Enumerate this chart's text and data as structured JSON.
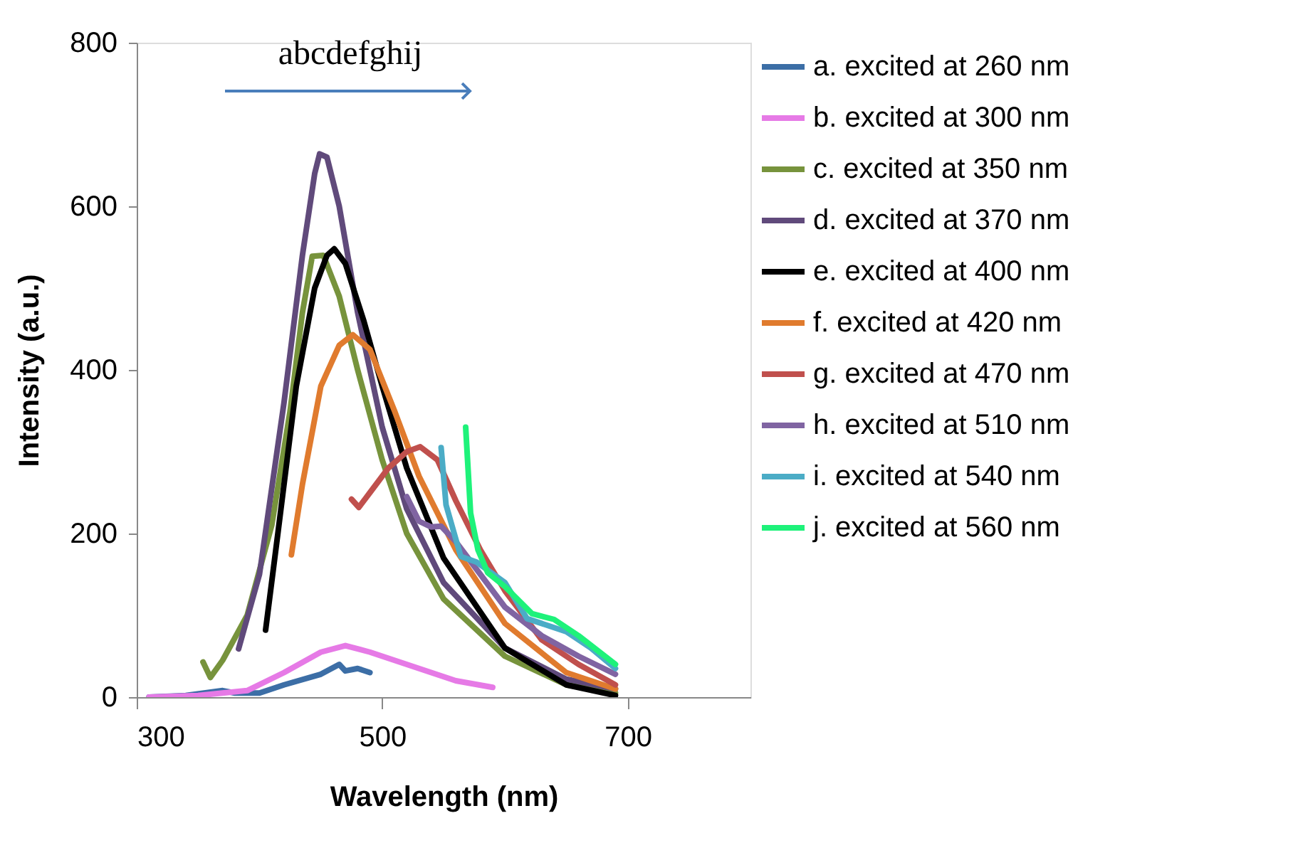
{
  "chart_data": {
    "type": "line",
    "xlabel": "Wavelength (nm)",
    "ylabel": "Intensity (a.u.)",
    "annotations": [
      "abcdefghij"
    ],
    "xlim": [
      300,
      800
    ],
    "xticks": [
      300,
      500,
      700
    ],
    "ylim": [
      0,
      800
    ],
    "yticks": [
      0,
      200,
      400,
      600,
      800
    ],
    "grid": false,
    "legend": "right",
    "marker": "none",
    "line_style": "solid",
    "series": [
      {
        "name": "a. excited at 260 nm",
        "color": "#3c6ea6",
        "x": [
          310,
          340,
          370,
          380,
          400,
          420,
          450,
          465,
          470,
          480,
          490
        ],
        "values": [
          0,
          2,
          8,
          5,
          5,
          15,
          28,
          40,
          32,
          35,
          30
        ]
      },
      {
        "name": "b. excited at 300 nm",
        "color": "#e67ae6",
        "x": [
          310,
          350,
          390,
          420,
          450,
          470,
          490,
          520,
          560,
          590
        ],
        "values": [
          0,
          2,
          8,
          30,
          55,
          63,
          55,
          40,
          20,
          12
        ]
      },
      {
        "name": "c. excited at 350 nm",
        "color": "#77933c",
        "x": [
          354,
          360,
          370,
          390,
          410,
          425,
          435,
          443,
          452,
          465,
          480,
          500,
          520,
          550,
          600,
          650,
          690
        ],
        "values": [
          43,
          24,
          45,
          100,
          210,
          350,
          470,
          539,
          540,
          490,
          400,
          290,
          200,
          120,
          50,
          15,
          5
        ]
      },
      {
        "name": "d. excited at 370 nm",
        "color": "#604a7b",
        "x": [
          383,
          400,
          420,
          435,
          445,
          449,
          455,
          465,
          480,
          500,
          520,
          550,
          600,
          650,
          690
        ],
        "values": [
          59,
          150,
          360,
          540,
          640,
          664,
          660,
          600,
          470,
          330,
          230,
          140,
          60,
          22,
          10
        ]
      },
      {
        "name": "e. excited at 400 nm",
        "color": "#000000",
        "x": [
          405,
          415,
          430,
          445,
          455,
          461,
          470,
          485,
          500,
          520,
          550,
          600,
          650,
          690
        ],
        "values": [
          82,
          200,
          380,
          500,
          540,
          548,
          530,
          460,
          380,
          280,
          170,
          60,
          15,
          2
        ]
      },
      {
        "name": "f. excited at 420 nm",
        "color": "#e07b2e",
        "x": [
          426,
          435,
          450,
          465,
          476,
          490,
          510,
          530,
          560,
          600,
          650,
          690
        ],
        "values": [
          174,
          260,
          380,
          430,
          443,
          425,
          350,
          270,
          180,
          90,
          30,
          10
        ]
      },
      {
        "name": "g. excited at 470 nm",
        "color": "#c0504d",
        "x": [
          475,
          481,
          490,
          505,
          520,
          531,
          545,
          560,
          580,
          600,
          630,
          660,
          690
        ],
        "values": [
          242,
          232,
          250,
          280,
          300,
          306,
          290,
          240,
          180,
          130,
          70,
          40,
          15
        ]
      },
      {
        "name": "h. excited at 510 nm",
        "color": "#8064a2",
        "x": [
          520,
          530,
          540,
          548,
          560,
          580,
          600,
          630,
          660,
          690
        ],
        "values": [
          245,
          215,
          208,
          209,
          190,
          150,
          110,
          75,
          50,
          28
        ]
      },
      {
        "name": "i. excited at 540 nm",
        "color": "#4bacc6",
        "x": [
          548,
          552,
          564,
          577,
          600,
          618,
          650,
          670,
          690
        ],
        "values": [
          305,
          235,
          172,
          165,
          140,
          96,
          80,
          60,
          35
        ]
      },
      {
        "name": "j. excited at 560 nm",
        "color": "#1ef27a",
        "x": [
          568,
          572,
          578,
          586,
          600,
          622,
          640,
          660,
          690
        ],
        "values": [
          330,
          225,
          180,
          152,
          135,
          102,
          95,
          75,
          40
        ]
      }
    ]
  }
}
